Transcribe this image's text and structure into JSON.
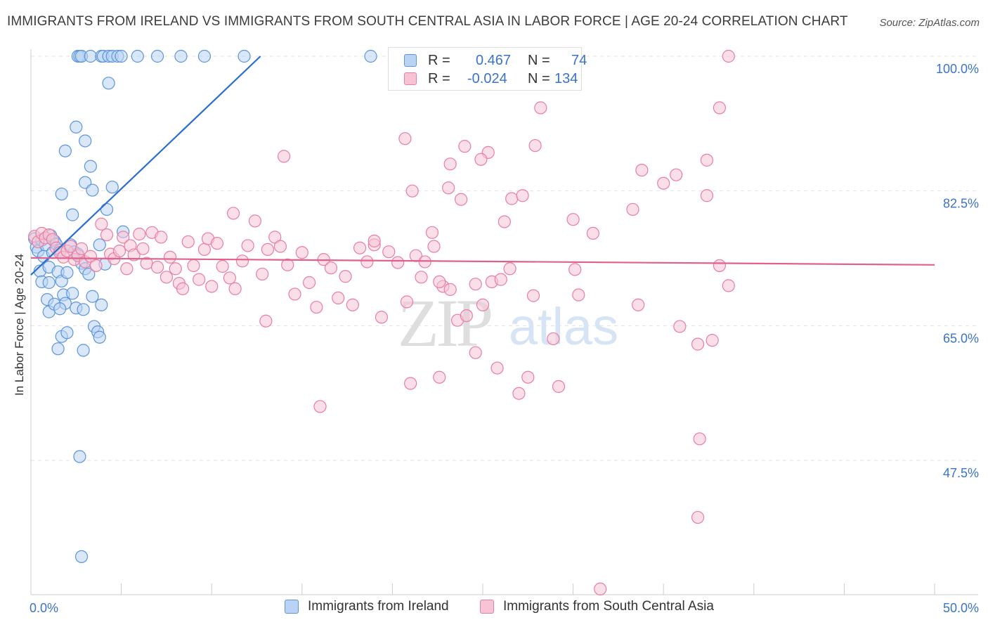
{
  "title": "IMMIGRANTS FROM IRELAND VS IMMIGRANTS FROM SOUTH CENTRAL ASIA IN LABOR FORCE | AGE 20-24 CORRELATION CHART",
  "source": "Source: ZipAtlas.com",
  "watermark": {
    "zip": "ZIP",
    "atlas": "atlas"
  },
  "legend": {
    "r_label": "R =",
    "n_label": "N =",
    "series": [
      {
        "name": "Immigrants from Ireland",
        "r": "0.467",
        "n": "74",
        "fill": "#b9d3f4",
        "stroke": "#5b95dd"
      },
      {
        "name": "Immigrants from South Central Asia",
        "r": "-0.024",
        "n": "134",
        "fill": "#f8c4d5",
        "stroke": "#e87ea1"
      }
    ]
  },
  "colors": {
    "blue_line": "#2a6fd0",
    "pink_line": "#e0608e",
    "axis_label": "#3a73c9",
    "grid": "#e2e2e2"
  },
  "chart_data": {
    "type": "scatter",
    "title": "IMMIGRANTS FROM IRELAND VS IMMIGRANTS FROM SOUTH CENTRAL ASIA IN LABOR FORCE | AGE 20-24 CORRELATION CHART",
    "xlabel": "",
    "ylabel": "In Labor Force | Age 20-24",
    "xlim": [
      0,
      50
    ],
    "ylim": [
      30,
      101.5
    ],
    "x_tick_labels": [
      {
        "value": 0,
        "label": "0.0%"
      },
      {
        "value": 50,
        "label": "50.0%"
      }
    ],
    "y_tick_labels": [
      {
        "value": 100,
        "label": "100.0%"
      },
      {
        "value": 82.5,
        "label": "82.5%"
      },
      {
        "value": 65,
        "label": "65.0%"
      },
      {
        "value": 47.5,
        "label": "47.5%"
      }
    ],
    "grid": true,
    "series": [
      {
        "name": "Immigrants from Ireland",
        "trend": {
          "x": [
            0,
            12.7
          ],
          "y": [
            71.6,
            100.0
          ]
        },
        "points": [
          [
            0.2,
            76.3
          ],
          [
            0.3,
            75.2
          ],
          [
            0.4,
            74.7
          ],
          [
            0.5,
            72.1
          ],
          [
            0.6,
            76.1
          ],
          [
            0.7,
            74.0
          ],
          [
            0.8,
            75.5
          ],
          [
            0.9,
            68.4
          ],
          [
            1.0,
            72.6
          ],
          [
            1.1,
            76.7
          ],
          [
            1.2,
            74.5
          ],
          [
            1.3,
            76.0
          ],
          [
            1.4,
            75.6
          ],
          [
            1.5,
            72.0
          ],
          [
            1.6,
            74.8
          ],
          [
            1.7,
            70.8
          ],
          [
            1.8,
            69.0
          ],
          [
            1.9,
            67.9
          ],
          [
            2.0,
            71.9
          ],
          [
            2.2,
            75.5
          ],
          [
            2.4,
            74.6
          ],
          [
            2.6,
            74.3
          ],
          [
            2.8,
            73.1
          ],
          [
            3.0,
            72.4
          ],
          [
            3.2,
            71.7
          ],
          [
            0.6,
            70.7
          ],
          [
            1.0,
            66.8
          ],
          [
            1.3,
            67.8
          ],
          [
            1.6,
            67.2
          ],
          [
            2.3,
            69.2
          ],
          [
            2.5,
            67.3
          ],
          [
            2.9,
            67.1
          ],
          [
            3.4,
            68.8
          ],
          [
            3.9,
            67.7
          ],
          [
            1.5,
            62.0
          ],
          [
            1.7,
            63.6
          ],
          [
            2.0,
            64.1
          ],
          [
            2.9,
            61.8
          ],
          [
            3.5,
            64.9
          ],
          [
            3.7,
            64.2
          ],
          [
            3.8,
            63.5
          ],
          [
            2.7,
            48.0
          ],
          [
            2.8,
            35.0
          ],
          [
            1.7,
            82.1
          ],
          [
            1.9,
            87.7
          ],
          [
            2.3,
            79.4
          ],
          [
            2.5,
            90.8
          ],
          [
            3.0,
            83.6
          ],
          [
            3.0,
            89.0
          ],
          [
            3.3,
            85.7
          ],
          [
            3.4,
            82.6
          ],
          [
            4.2,
            80.1
          ],
          [
            4.5,
            83.0
          ],
          [
            5.1,
            77.2
          ],
          [
            3.8,
            75.5
          ],
          [
            4.1,
            73.0
          ],
          [
            2.6,
            100
          ],
          [
            2.7,
            100
          ],
          [
            2.8,
            100
          ],
          [
            3.3,
            100
          ],
          [
            3.9,
            100
          ],
          [
            4.0,
            100
          ],
          [
            4.3,
            100
          ],
          [
            4.5,
            100
          ],
          [
            4.8,
            100
          ],
          [
            5.0,
            100
          ],
          [
            5.9,
            100
          ],
          [
            7.0,
            100
          ],
          [
            8.3,
            100
          ],
          [
            9.6,
            100
          ],
          [
            11.8,
            100
          ],
          [
            18.8,
            100
          ],
          [
            4.3,
            96.5
          ],
          [
            1.0,
            70.6
          ]
        ]
      },
      {
        "name": "Immigrants from South Central Asia",
        "trend": {
          "x": [
            0,
            50
          ],
          "y": [
            73.8,
            72.9
          ]
        },
        "points": [
          [
            0.2,
            76.6
          ],
          [
            0.4,
            75.9
          ],
          [
            0.6,
            77.0
          ],
          [
            0.8,
            76.4
          ],
          [
            1.0,
            76.8
          ],
          [
            1.2,
            76.2
          ],
          [
            1.4,
            75.1
          ],
          [
            1.6,
            74.5
          ],
          [
            1.8,
            73.9
          ],
          [
            2.0,
            74.7
          ],
          [
            2.2,
            75.3
          ],
          [
            2.4,
            73.6
          ],
          [
            2.6,
            74.1
          ],
          [
            2.8,
            75.0
          ],
          [
            3.0,
            73.3
          ],
          [
            3.3,
            74.0
          ],
          [
            3.6,
            72.8
          ],
          [
            3.9,
            78.2
          ],
          [
            4.2,
            76.8
          ],
          [
            4.4,
            74.3
          ],
          [
            4.6,
            73.7
          ],
          [
            4.9,
            74.7
          ],
          [
            5.1,
            76.5
          ],
          [
            5.3,
            72.4
          ],
          [
            5.5,
            75.4
          ],
          [
            5.7,
            74.2
          ],
          [
            6.0,
            76.9
          ],
          [
            6.2,
            75.0
          ],
          [
            6.4,
            73.1
          ],
          [
            6.7,
            77.1
          ],
          [
            7.0,
            72.6
          ],
          [
            7.2,
            76.5
          ],
          [
            7.5,
            71.3
          ],
          [
            7.7,
            73.9
          ],
          [
            8.0,
            72.4
          ],
          [
            8.2,
            70.5
          ],
          [
            8.4,
            69.8
          ],
          [
            8.7,
            75.9
          ],
          [
            9.0,
            72.8
          ],
          [
            9.3,
            71.0
          ],
          [
            9.6,
            74.9
          ],
          [
            9.8,
            76.3
          ],
          [
            10.0,
            70.1
          ],
          [
            10.3,
            75.7
          ],
          [
            10.6,
            72.7
          ],
          [
            11.0,
            71.2
          ],
          [
            11.3,
            69.8
          ],
          [
            11.7,
            73.4
          ],
          [
            12.0,
            75.4
          ],
          [
            12.4,
            78.6
          ],
          [
            12.8,
            71.7
          ],
          [
            13.1,
            74.9
          ],
          [
            13.5,
            76.5
          ],
          [
            13.8,
            75.3
          ],
          [
            14.2,
            72.9
          ],
          [
            14.6,
            69.1
          ],
          [
            15.0,
            74.5
          ],
          [
            15.4,
            70.6
          ],
          [
            15.8,
            67.4
          ],
          [
            16.2,
            73.6
          ],
          [
            16.6,
            72.5
          ],
          [
            17.0,
            68.6
          ],
          [
            17.4,
            71.4
          ],
          [
            17.8,
            67.7
          ],
          [
            18.2,
            75.1
          ],
          [
            18.6,
            73.3
          ],
          [
            19.0,
            75.5
          ],
          [
            19.4,
            66.1
          ],
          [
            19.8,
            74.6
          ],
          [
            20.3,
            73.2
          ],
          [
            20.8,
            68.1
          ],
          [
            21.3,
            74.1
          ],
          [
            21.8,
            73.3
          ],
          [
            22.3,
            75.3
          ],
          [
            22.8,
            70.1
          ],
          [
            23.2,
            69.7
          ],
          [
            23.6,
            65.7
          ],
          [
            24.1,
            66.3
          ],
          [
            24.6,
            61.5
          ],
          [
            25.0,
            67.7
          ],
          [
            25.5,
            70.7
          ],
          [
            26.0,
            71.0
          ],
          [
            26.5,
            72.4
          ],
          [
            27.0,
            56.2
          ],
          [
            27.5,
            58.3
          ],
          [
            23.2,
            86.0
          ],
          [
            23.8,
            81.4
          ],
          [
            25.3,
            87.5
          ],
          [
            26.6,
            81.5
          ],
          [
            27.2,
            81.9
          ],
          [
            24.0,
            88.3
          ],
          [
            21.1,
            82.5
          ],
          [
            20.7,
            89.3
          ],
          [
            21.6,
            71.3
          ],
          [
            22.2,
            77.1
          ],
          [
            22.6,
            70.7
          ],
          [
            26.2,
            78.5
          ],
          [
            27.8,
            68.9
          ],
          [
            28.9,
            63.3
          ],
          [
            30.1,
            72.3
          ],
          [
            33.6,
            67.7
          ],
          [
            35.9,
            64.9
          ],
          [
            36.9,
            62.6
          ],
          [
            37.7,
            63.1
          ],
          [
            38.1,
            72.8
          ],
          [
            38.6,
            70.2
          ],
          [
            30.3,
            69.0
          ],
          [
            30.0,
            78.8
          ],
          [
            13.0,
            65.6
          ],
          [
            11.2,
            79.6
          ],
          [
            21.0,
            57.5
          ],
          [
            14.0,
            87.0
          ],
          [
            16.0,
            54.5
          ],
          [
            19.0,
            76.0
          ],
          [
            22.6,
            58.3
          ],
          [
            25.8,
            59.5
          ],
          [
            24.9,
            86.6
          ],
          [
            27.9,
            88.4
          ],
          [
            31.1,
            77.0
          ],
          [
            33.8,
            85.2
          ],
          [
            35.7,
            84.6
          ],
          [
            37.4,
            86.5
          ],
          [
            38.1,
            93.3
          ],
          [
            35.0,
            83.5
          ],
          [
            28.2,
            93.3
          ],
          [
            24.6,
            70.4
          ],
          [
            23.1,
            82.9
          ],
          [
            33.3,
            80.1
          ],
          [
            37.4,
            81.9
          ],
          [
            38.6,
            100
          ],
          [
            31.5,
            30.8
          ],
          [
            36.9,
            40.1
          ],
          [
            37.0,
            50.3
          ],
          [
            29.2,
            57.1
          ]
        ]
      }
    ]
  }
}
